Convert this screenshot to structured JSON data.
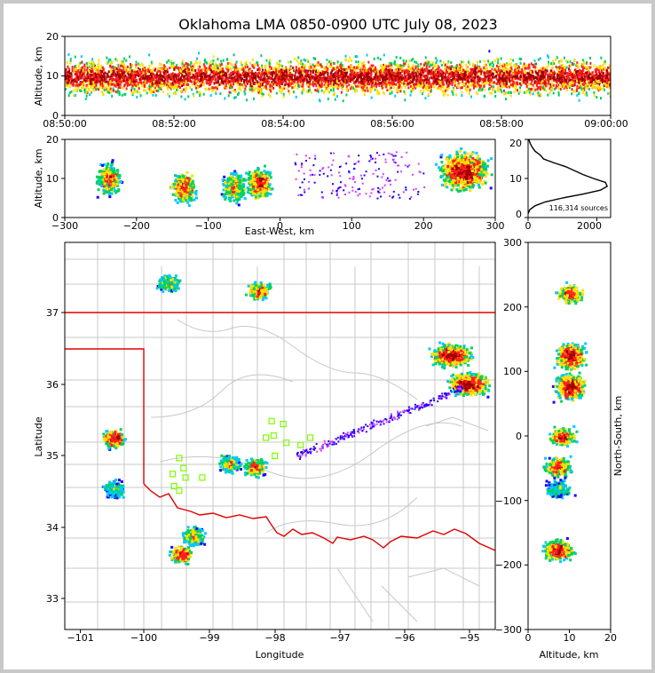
{
  "title": "Oklahoma LMA 0850-0900 UTC July 08, 2023",
  "colors": {
    "state_border": "#e00000",
    "county_lines": "#c8c8c8",
    "station_marker": "#7cfc00",
    "density_scale": [
      "#1e00ff",
      "#00c8ff",
      "#00d060",
      "#ffe000",
      "#ff2020",
      "#a00000"
    ]
  },
  "chart_data": [
    {
      "type": "heatmap",
      "panel": "altitude-vs-time",
      "ylabel": "Altitude, km",
      "ylim": [
        0,
        20
      ],
      "yticks": [
        "0",
        "10",
        "20"
      ],
      "xticks": [
        "08:50:00",
        "08:52:00",
        "08:54:00",
        "08:56:00",
        "08:58:00",
        "09:00:00"
      ],
      "x_range_minutes": [
        0,
        10
      ],
      "source_altitude_range_km": [
        3,
        20
      ]
    },
    {
      "type": "heatmap",
      "panel": "altitude-vs-east-west",
      "xlabel": "East-West, km",
      "ylabel": "Altitude, km",
      "xlim": [
        -300,
        300
      ],
      "ylim": [
        0,
        20
      ],
      "xticks": [
        "−300",
        "−200",
        "−100",
        "0",
        "100",
        "200",
        "300"
      ],
      "yticks": [
        "0",
        "10",
        "20"
      ],
      "clusters": [
        {
          "x_km": -240,
          "alt_km": 10,
          "intensity": 0.8
        },
        {
          "x_km": -135,
          "alt_km": 8,
          "intensity": 0.85
        },
        {
          "x_km": -65,
          "alt_km": 8,
          "intensity": 0.7
        },
        {
          "x_km": -30,
          "alt_km": 9,
          "intensity": 0.9
        },
        {
          "x_km": 255,
          "alt_km": 12,
          "intensity": 1.0
        }
      ]
    },
    {
      "type": "line",
      "panel": "altitude-histogram",
      "xlim": [
        0,
        2400
      ],
      "ylim": [
        0,
        20
      ],
      "xticks": [
        "0",
        "2000"
      ],
      "yticks": [
        "0",
        "10",
        "20"
      ],
      "annotation": "116,314 sources",
      "profile": [
        [
          0,
          1
        ],
        [
          50,
          2
        ],
        [
          200,
          3
        ],
        [
          500,
          4
        ],
        [
          1000,
          5
        ],
        [
          1600,
          6
        ],
        [
          2100,
          7
        ],
        [
          2300,
          8
        ],
        [
          2250,
          9
        ],
        [
          1900,
          10
        ],
        [
          1600,
          11
        ],
        [
          1350,
          12
        ],
        [
          1100,
          13
        ],
        [
          750,
          14
        ],
        [
          450,
          15
        ],
        [
          350,
          16
        ],
        [
          200,
          17
        ],
        [
          120,
          18
        ],
        [
          60,
          19
        ],
        [
          20,
          20
        ]
      ]
    },
    {
      "type": "heatmap",
      "panel": "plan-view",
      "xlabel": "Longitude",
      "ylabel": "Latitude",
      "xlim": [
        -101.2,
        -94.5
      ],
      "ylim": [
        32.6,
        37.95
      ],
      "xticks": [
        "−101",
        "−100",
        "−99",
        "−98",
        "−97",
        "−96",
        "−95"
      ],
      "yticks": [
        "33",
        "34",
        "35",
        "36",
        "37"
      ],
      "clusters": [
        {
          "lon": -98.2,
          "lat": 37.3,
          "intensity": 0.85
        },
        {
          "lon": -99.6,
          "lat": 37.4,
          "intensity": 0.6
        },
        {
          "lon": -95.2,
          "lat": 36.4,
          "intensity": 1.0
        },
        {
          "lon": -94.95,
          "lat": 36.0,
          "intensity": 1.0
        },
        {
          "lon": -100.45,
          "lat": 35.25,
          "intensity": 0.95
        },
        {
          "lon": -98.25,
          "lat": 34.85,
          "intensity": 0.8
        },
        {
          "lon": -98.65,
          "lat": 34.9,
          "intensity": 0.65
        },
        {
          "lon": -99.2,
          "lat": 33.9,
          "intensity": 0.7
        },
        {
          "lon": -99.4,
          "lat": 33.65,
          "intensity": 0.95
        },
        {
          "lon": -100.45,
          "lat": 34.55,
          "intensity": 0.5
        }
      ],
      "stations": [
        [
          -97.98,
          35.48
        ],
        [
          -97.8,
          35.44
        ],
        [
          -98.07,
          35.25
        ],
        [
          -97.95,
          35.28
        ],
        [
          -97.75,
          35.18
        ],
        [
          -97.53,
          35.15
        ],
        [
          -97.38,
          35.25
        ],
        [
          -97.93,
          35.0
        ],
        [
          -99.35,
          34.83
        ],
        [
          -99.42,
          34.97
        ],
        [
          -99.52,
          34.75
        ],
        [
          -99.32,
          34.7
        ],
        [
          -99.06,
          34.7
        ],
        [
          -99.5,
          34.58
        ],
        [
          -99.42,
          34.52
        ]
      ]
    },
    {
      "type": "heatmap",
      "panel": "north-south-vs-altitude",
      "xlabel": "Altitude, km",
      "ylabel": "North-South, km",
      "xlim": [
        0,
        20
      ],
      "ylim": [
        -300,
        300
      ],
      "xticks": [
        "0",
        "10",
        "20"
      ],
      "yticks": [
        "−300",
        "−200",
        "−100",
        "0",
        "100",
        "200",
        "300"
      ],
      "clusters": [
        {
          "alt_km": 10,
          "y_km": 222,
          "intensity": 0.85
        },
        {
          "alt_km": 10,
          "y_km": 125,
          "intensity": 1.0
        },
        {
          "alt_km": 10,
          "y_km": 78,
          "intensity": 1.0
        },
        {
          "alt_km": 8,
          "y_km": 0,
          "intensity": 0.85
        },
        {
          "alt_km": 7,
          "y_km": -47,
          "intensity": 0.85
        },
        {
          "alt_km": 7,
          "y_km": -80,
          "intensity": 0.4
        },
        {
          "alt_km": 7,
          "y_km": -175,
          "intensity": 0.95
        }
      ]
    }
  ]
}
